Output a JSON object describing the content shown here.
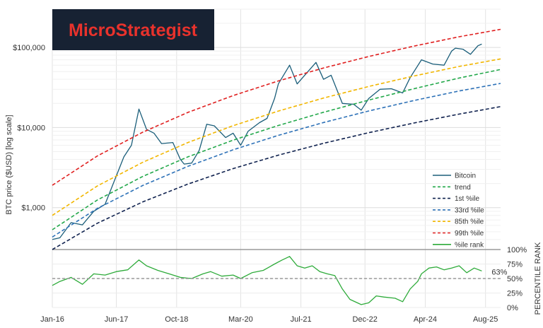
{
  "logo": {
    "text": "MicroStrategist",
    "bg": "#172233",
    "fg": "#e8322c"
  },
  "chart_data": {
    "type": "line",
    "xlabel": "",
    "ylabel": "BTC price ($USD) [log scale]",
    "ylabel2": "PERCENTILE RANK",
    "xlim": [
      "2016-01",
      "2025-12"
    ],
    "ylim": [
      300,
      300000
    ],
    "yscale": "log",
    "y2lim": [
      0,
      100
    ],
    "x_tick_labels": [
      "Jan-16",
      "Jun-17",
      "Oct-18",
      "Mar-20",
      "Jul-21",
      "Dec-22",
      "Apr-24",
      "Aug-25"
    ],
    "y_tick_labels": [
      "$1,000",
      "$10,000",
      "$100,000"
    ],
    "y2_tick_labels": [
      "0%",
      "25%",
      "50%",
      "75%",
      "100%"
    ],
    "grid": true,
    "legend_position": "right",
    "annotation": "63%",
    "series": [
      {
        "name": "Bitcoin",
        "color": "#1b5e7a",
        "style": "solid",
        "x": [
          "2016-01",
          "2016-03",
          "2016-06",
          "2016-09",
          "2016-12",
          "2017-03",
          "2017-06",
          "2017-08",
          "2017-10",
          "2017-12",
          "2018-02",
          "2018-04",
          "2018-06",
          "2018-09",
          "2018-11",
          "2018-12",
          "2019-02",
          "2019-04",
          "2019-06",
          "2019-08",
          "2019-11",
          "2020-01",
          "2020-03",
          "2020-05",
          "2020-08",
          "2020-10",
          "2020-12",
          "2021-01",
          "2021-04",
          "2021-06",
          "2021-08",
          "2021-11",
          "2022-01",
          "2022-03",
          "2022-06",
          "2022-09",
          "2022-11",
          "2023-01",
          "2023-04",
          "2023-07",
          "2023-10",
          "2023-12",
          "2024-03",
          "2024-06",
          "2024-09",
          "2024-11",
          "2024-12",
          "2025-02",
          "2025-04",
          "2025-06",
          "2025-07"
        ],
        "y": [
          400,
          420,
          650,
          610,
          900,
          1100,
          2500,
          4300,
          6000,
          17000,
          9500,
          8500,
          6300,
          6500,
          4000,
          3500,
          3600,
          5200,
          11000,
          10500,
          7500,
          8500,
          6000,
          9000,
          11500,
          13000,
          23000,
          35000,
          60000,
          35000,
          45000,
          65000,
          40000,
          45000,
          20000,
          19500,
          16500,
          23000,
          30000,
          30500,
          27000,
          42000,
          70000,
          62000,
          60000,
          90000,
          98000,
          95000,
          82000,
          105000,
          110000
        ]
      },
      {
        "name": "trend",
        "color": "#22a84a",
        "style": "dashed",
        "x": [
          "2016-01",
          "2017-01",
          "2018-01",
          "2019-01",
          "2020-01",
          "2021-01",
          "2022-01",
          "2023-01",
          "2024-01",
          "2025-01",
          "2025-12"
        ],
        "y": [
          530,
          1250,
          2450,
          4300,
          6950,
          10600,
          15500,
          22000,
          30500,
          41500,
          53000
        ]
      },
      {
        "name": "1st %ile",
        "color": "#10224f",
        "style": "dashed",
        "x": [
          "2016-01",
          "2017-01",
          "2018-01",
          "2019-01",
          "2020-01",
          "2021-01",
          "2022-01",
          "2023-01",
          "2024-01",
          "2025-01",
          "2025-12"
        ],
        "y": [
          300,
          640,
          1180,
          1970,
          3070,
          4520,
          6360,
          8620,
          11390,
          14700,
          18260
        ]
      },
      {
        "name": "33rd %ile",
        "color": "#2e72b8",
        "style": "dashed",
        "x": [
          "2016-01",
          "2017-01",
          "2018-01",
          "2019-01",
          "2020-01",
          "2021-01",
          "2022-01",
          "2023-01",
          "2024-01",
          "2025-01",
          "2025-12"
        ],
        "y": [
          430,
          980,
          1890,
          3280,
          5270,
          7990,
          11560,
          16090,
          21720,
          28580,
          35520
        ]
      },
      {
        "name": "85th %ile",
        "color": "#f2b600",
        "style": "dashed",
        "x": [
          "2016-01",
          "2017-01",
          "2018-01",
          "2019-01",
          "2020-01",
          "2021-01",
          "2022-01",
          "2023-01",
          "2024-01",
          "2025-01",
          "2025-12"
        ],
        "y": [
          800,
          1870,
          3680,
          6500,
          10540,
          16070,
          23340,
          32580,
          44020,
          57850,
          71860
        ]
      },
      {
        "name": "99th %ile",
        "color": "#e02020",
        "style": "dashed",
        "x": [
          "2016-01",
          "2017-01",
          "2018-01",
          "2019-01",
          "2020-01",
          "2021-01",
          "2022-01",
          "2023-01",
          "2024-01",
          "2025-01",
          "2025-12"
        ],
        "y": [
          1900,
          4430,
          8750,
          15450,
          25070,
          38180,
          55360,
          77070,
          103800,
          135800,
          168000
        ]
      },
      {
        "name": "%ile rank",
        "color": "#2eab3a",
        "style": "solid",
        "axis": "secondary",
        "x": [
          "2016-01",
          "2016-03",
          "2016-06",
          "2016-09",
          "2016-12",
          "2017-03",
          "2017-06",
          "2017-09",
          "2017-12",
          "2018-02",
          "2018-05",
          "2018-08",
          "2018-11",
          "2019-02",
          "2019-05",
          "2019-07",
          "2019-10",
          "2020-01",
          "2020-03",
          "2020-06",
          "2020-09",
          "2020-12",
          "2021-02",
          "2021-04",
          "2021-06",
          "2021-08",
          "2021-10",
          "2021-12",
          "2022-02",
          "2022-04",
          "2022-06",
          "2022-08",
          "2022-11",
          "2023-01",
          "2023-03",
          "2023-05",
          "2023-08",
          "2023-10",
          "2023-12",
          "2024-02",
          "2024-03",
          "2024-05",
          "2024-07",
          "2024-09",
          "2024-11",
          "2025-01",
          "2025-03",
          "2025-05",
          "2025-07"
        ],
        "y": [
          38,
          45,
          52,
          40,
          58,
          56,
          62,
          65,
          82,
          72,
          64,
          58,
          52,
          50,
          58,
          62,
          54,
          56,
          50,
          60,
          64,
          75,
          82,
          88,
          72,
          68,
          72,
          62,
          58,
          55,
          32,
          14,
          5,
          8,
          20,
          18,
          16,
          10,
          32,
          45,
          58,
          68,
          70,
          65,
          68,
          72,
          60,
          68,
          63
        ]
      },
      {
        "name": "50% reference",
        "color": "#999999",
        "style": "dashed",
        "axis": "secondary",
        "x": [
          "2016-01",
          "2025-12"
        ],
        "y": [
          50,
          50
        ]
      }
    ]
  }
}
